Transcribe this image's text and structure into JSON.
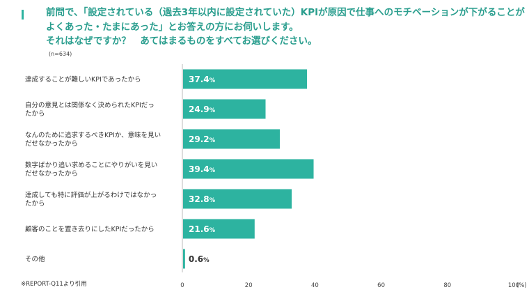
{
  "title_lines": [
    "前問で、「設定されている（過去3年以内に設定されていた）KPIが原因で仕事へのモチベーションが下がることが",
    "よくあった・たまにあった」とお答えの方にお伺いします。",
    "それはなぜですか？　あてはまるものをすべてお選びください。"
  ],
  "sample_size": "(n=634)",
  "source_note": "※REPORT-Q11より引用",
  "colors": {
    "bar": "#2db3a0",
    "accent": "#2db3a0",
    "title": "#2a9e8e"
  },
  "chart_data": {
    "type": "bar",
    "orientation": "horizontal",
    "categories": [
      [
        "達成することが難しいKPIであったから"
      ],
      [
        "自分の意見とは関係なく決められたKPIだっ",
        "たから"
      ],
      [
        "なんのために追求するべきKPIか、意味を見い",
        "だせなかったから"
      ],
      [
        "数字ばかり追い求めることにやりがいを見い",
        "だせなかったから"
      ],
      [
        "達成しても特に評価が上がるわけではなかっ",
        "たから"
      ],
      [
        "顧客のことを置き去りにしたKPIだったから"
      ],
      [
        "その他"
      ]
    ],
    "values": [
      37.4,
      24.9,
      29.2,
      39.4,
      32.8,
      21.6,
      0.6
    ],
    "value_labels": [
      "37.4",
      "24.9",
      "29.2",
      "39.4",
      "32.8",
      "21.6",
      "0.6"
    ],
    "value_unit": "%",
    "xlim": [
      0,
      100
    ],
    "xticks": [
      "0",
      "20",
      "40",
      "60",
      "80",
      "100"
    ],
    "x_unit": "(%)",
    "grid": false
  }
}
